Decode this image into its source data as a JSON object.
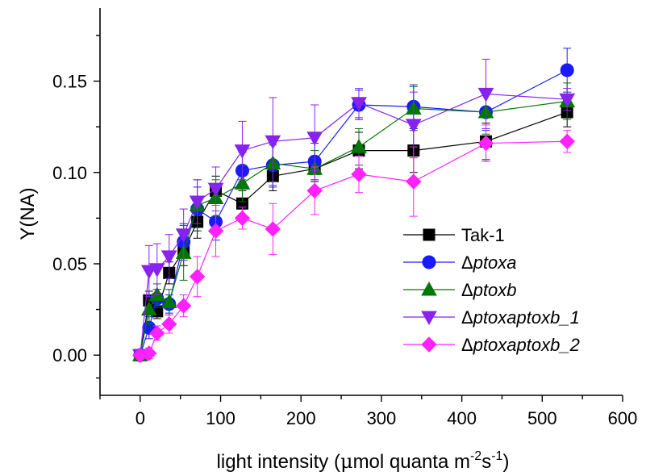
{
  "chart_data": {
    "type": "line",
    "xlabel": "light intensity (",
    "xlabel_mu": "μ",
    "xlabel_mid": "mol quanta m",
    "xlabel_sup1": "-2",
    "xlabel_s": "s",
    "xlabel_sup2": "-1",
    "xlabel_end": ")",
    "ylabel": "Y(NA)",
    "xlim": [
      -50,
      600
    ],
    "ylim": [
      -0.022,
      0.19
    ],
    "xticks": [
      0,
      100,
      200,
      300,
      400,
      500,
      600
    ],
    "yticks": [
      0.0,
      0.05,
      0.1,
      0.15
    ],
    "ytick_labels": [
      "0.00",
      "0.05",
      "0.10",
      "0.15"
    ],
    "legend_position": "lower-right",
    "x": [
      0,
      11,
      21,
      36,
      54,
      71,
      94,
      127,
      165,
      217,
      272,
      340,
      430,
      531
    ],
    "series": [
      {
        "name": "Tak-1",
        "name_prefix": "",
        "name_italic": "",
        "color": "#000000",
        "marker": "square",
        "values": [
          0.0,
          0.03,
          0.024,
          0.045,
          0.057,
          0.073,
          0.09,
          0.083,
          0.098,
          0.102,
          0.112,
          0.112,
          0.117,
          0.133
        ],
        "errors": [
          0.002,
          0.005,
          0.004,
          0.006,
          0.008,
          0.009,
          0.008,
          0.007,
          0.008,
          0.007,
          0.01,
          0.012,
          0.01,
          0.008
        ]
      },
      {
        "name": "Δptoxa",
        "name_prefix": "Δ",
        "name_italic": "ptoxa",
        "color": "#1a1aff",
        "marker": "circle",
        "values": [
          0.0,
          0.015,
          0.031,
          0.028,
          0.062,
          0.08,
          0.073,
          0.101,
          0.104,
          0.106,
          0.137,
          0.136,
          0.133,
          0.156
        ],
        "errors": [
          0.002,
          0.006,
          0.005,
          0.005,
          0.01,
          0.012,
          0.01,
          0.01,
          0.012,
          0.01,
          0.008,
          0.012,
          0.01,
          0.012
        ]
      },
      {
        "name": "Δptoxb",
        "name_prefix": "Δ",
        "name_italic": "ptoxb",
        "color": "#007700",
        "marker": "triangle-up",
        "values": [
          0.0,
          0.025,
          0.033,
          0.029,
          0.056,
          0.082,
          0.086,
          0.094,
          0.105,
          0.102,
          0.114,
          0.135,
          0.133,
          0.139
        ],
        "errors": [
          0.002,
          0.008,
          0.006,
          0.007,
          0.015,
          0.014,
          0.01,
          0.01,
          0.01,
          0.01,
          0.01,
          0.012,
          0.012,
          0.01
        ]
      },
      {
        "name": "Δptoxaptoxb_1",
        "name_prefix": "Δ",
        "name_italic": "ptoxaptoxb_1",
        "color": "#8822ee",
        "marker": "triangle-down",
        "values": [
          0.0,
          0.046,
          0.047,
          0.054,
          0.066,
          0.084,
          0.091,
          0.112,
          0.117,
          0.119,
          0.138,
          0.126,
          0.143,
          0.14
        ],
        "errors": [
          0.002,
          0.014,
          0.014,
          0.012,
          0.014,
          0.012,
          0.012,
          0.016,
          0.024,
          0.018,
          0.008,
          0.018,
          0.019,
          0.006
        ]
      },
      {
        "name": "Δptoxaptoxb_2",
        "name_prefix": "Δ",
        "name_italic": "ptoxaptoxb_2",
        "color": "#ff22ff",
        "marker": "diamond",
        "values": [
          0.0,
          0.001,
          0.012,
          0.017,
          0.027,
          0.043,
          0.068,
          0.075,
          0.069,
          0.09,
          0.099,
          0.095,
          0.116,
          0.117
        ],
        "errors": [
          0.002,
          0.003,
          0.004,
          0.005,
          0.006,
          0.011,
          0.014,
          0.006,
          0.014,
          0.013,
          0.01,
          0.019,
          0.01,
          0.006
        ]
      }
    ]
  }
}
